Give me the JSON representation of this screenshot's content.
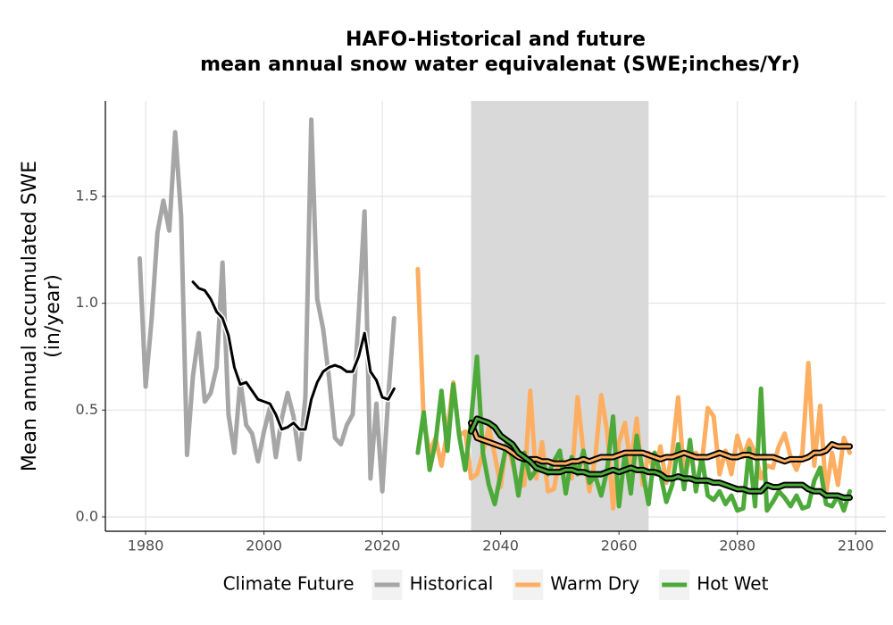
{
  "chart_data": {
    "type": "line",
    "title": [
      "HAFO-Historical and future",
      "mean annual snow water equivalenat (SWE;inches/Yr)"
    ],
    "y_label": [
      "Mean annual accumulated SWE",
      "(in/year)"
    ],
    "legend_title": "Climate Future",
    "legend": "bottom",
    "grid": true,
    "xlim": [
      1973.2,
      2105.1
    ],
    "ylim": [
      -0.067,
      1.947
    ],
    "xticks": [
      1980,
      2000,
      2020,
      2040,
      2060,
      2080,
      2100
    ],
    "yticks": [
      {
        "value": 0,
        "label": "0.0"
      },
      0.5,
      {
        "value": 1,
        "label": "1.0"
      },
      1.5
    ],
    "shaded_region": [
      2035,
      2065
    ],
    "shade_color": "#d9d9d9",
    "series": [
      {
        "name": "Historical",
        "color": "#a6a6a6",
        "x": [
          1979,
          1980,
          1981,
          1982,
          1983,
          1984,
          1985,
          1986,
          1987,
          1988,
          1989,
          1990,
          1991,
          1992,
          1993,
          1994,
          1995,
          1996,
          1997,
          1998,
          1999,
          2000,
          2001,
          2002,
          2003,
          2004,
          2005,
          2006,
          2007,
          2008,
          2009,
          2010,
          2011,
          2012,
          2013,
          2014,
          2015,
          2016,
          2017,
          2018,
          2019,
          2020,
          2021,
          2022
        ],
        "values": [
          1.21,
          0.61,
          0.92,
          1.33,
          1.48,
          1.34,
          1.8,
          1.41,
          0.29,
          0.66,
          0.86,
          0.54,
          0.58,
          0.7,
          1.19,
          0.48,
          0.3,
          0.64,
          0.43,
          0.39,
          0.26,
          0.4,
          0.51,
          0.28,
          0.46,
          0.58,
          0.47,
          0.27,
          0.56,
          1.86,
          1.02,
          0.88,
          0.65,
          0.37,
          0.34,
          0.43,
          0.48,
          0.94,
          1.43,
          0.18,
          0.53,
          0.12,
          0.56,
          0.93
        ],
        "rolling": {
          "color": "#000000",
          "halo": "#ffffff",
          "x": [
            1988,
            1989,
            1990,
            1991,
            1992,
            1993,
            1994,
            1995,
            1996,
            1997,
            1998,
            1999,
            2000,
            2001,
            2002,
            2003,
            2004,
            2005,
            2006,
            2007,
            2008,
            2009,
            2010,
            2011,
            2012,
            2013,
            2014,
            2015,
            2016,
            2017,
            2018,
            2019,
            2020,
            2021,
            2022
          ],
          "values": [
            1.1,
            1.07,
            1.06,
            1.02,
            0.96,
            0.93,
            0.85,
            0.7,
            0.62,
            0.63,
            0.59,
            0.55,
            0.54,
            0.53,
            0.48,
            0.41,
            0.42,
            0.44,
            0.41,
            0.41,
            0.55,
            0.63,
            0.68,
            0.7,
            0.71,
            0.7,
            0.68,
            0.68,
            0.75,
            0.86,
            0.68,
            0.64,
            0.56,
            0.55,
            0.6
          ]
        }
      },
      {
        "name": "Warm Dry",
        "color": "#fdae61",
        "x": [
          2026,
          2027,
          2028,
          2029,
          2030,
          2031,
          2032,
          2033,
          2034,
          2035,
          2036,
          2037,
          2038,
          2039,
          2040,
          2041,
          2042,
          2043,
          2044,
          2045,
          2046,
          2047,
          2048,
          2049,
          2050,
          2051,
          2052,
          2053,
          2054,
          2055,
          2056,
          2057,
          2058,
          2059,
          2060,
          2061,
          2062,
          2063,
          2064,
          2065,
          2066,
          2067,
          2068,
          2069,
          2070,
          2071,
          2072,
          2073,
          2074,
          2075,
          2076,
          2077,
          2078,
          2079,
          2080,
          2081,
          2082,
          2083,
          2084,
          2085,
          2086,
          2087,
          2088,
          2089,
          2090,
          2091,
          2092,
          2093,
          2094,
          2095,
          2096,
          2097,
          2098,
          2099
        ],
        "values": [
          1.16,
          0.45,
          0.3,
          0.37,
          0.24,
          0.4,
          0.63,
          0.38,
          0.4,
          0.18,
          0.2,
          0.3,
          0.42,
          0.29,
          0.14,
          0.35,
          0.25,
          0.14,
          0.15,
          0.59,
          0.18,
          0.35,
          0.12,
          0.13,
          0.28,
          0.24,
          0.18,
          0.56,
          0.3,
          0.12,
          0.28,
          0.57,
          0.4,
          0.04,
          0.35,
          0.44,
          0.24,
          0.46,
          0.15,
          0.3,
          0.2,
          0.33,
          0.16,
          0.3,
          0.56,
          0.19,
          0.28,
          0.3,
          0.25,
          0.51,
          0.47,
          0.2,
          0.31,
          0.2,
          0.38,
          0.28,
          0.36,
          0.3,
          0.18,
          0.24,
          0.23,
          0.33,
          0.39,
          0.28,
          0.22,
          0.3,
          0.72,
          0.24,
          0.52,
          0.11,
          0.3,
          0.15,
          0.37,
          0.3
        ],
        "rolling": {
          "color": "#000000",
          "halo": "#fdae61",
          "x": [
            2035,
            2036,
            2037,
            2038,
            2039,
            2040,
            2041,
            2042,
            2043,
            2044,
            2045,
            2046,
            2047,
            2048,
            2049,
            2050,
            2051,
            2052,
            2053,
            2054,
            2055,
            2056,
            2057,
            2058,
            2059,
            2060,
            2061,
            2062,
            2063,
            2064,
            2065,
            2066,
            2067,
            2068,
            2069,
            2070,
            2071,
            2072,
            2073,
            2074,
            2075,
            2076,
            2077,
            2078,
            2079,
            2080,
            2081,
            2082,
            2083,
            2084,
            2085,
            2086,
            2087,
            2088,
            2089,
            2090,
            2091,
            2092,
            2093,
            2094,
            2095,
            2096,
            2097,
            2098,
            2099
          ],
          "values": [
            0.44,
            0.37,
            0.36,
            0.35,
            0.34,
            0.33,
            0.32,
            0.3,
            0.28,
            0.27,
            0.27,
            0.27,
            0.26,
            0.26,
            0.25,
            0.25,
            0.25,
            0.26,
            0.26,
            0.27,
            0.26,
            0.27,
            0.28,
            0.28,
            0.28,
            0.29,
            0.3,
            0.3,
            0.3,
            0.3,
            0.29,
            0.28,
            0.27,
            0.28,
            0.28,
            0.29,
            0.3,
            0.29,
            0.28,
            0.28,
            0.28,
            0.29,
            0.3,
            0.29,
            0.28,
            0.28,
            0.29,
            0.29,
            0.28,
            0.28,
            0.28,
            0.28,
            0.27,
            0.26,
            0.27,
            0.27,
            0.27,
            0.28,
            0.3,
            0.3,
            0.31,
            0.34,
            0.33,
            0.33,
            0.33
          ]
        }
      },
      {
        "name": "Hot Wet",
        "color": "#4daa3a",
        "x": [
          2026,
          2027,
          2028,
          2029,
          2030,
          2031,
          2032,
          2033,
          2034,
          2035,
          2036,
          2037,
          2038,
          2039,
          2040,
          2041,
          2042,
          2043,
          2044,
          2045,
          2046,
          2047,
          2048,
          2049,
          2050,
          2051,
          2052,
          2053,
          2054,
          2055,
          2056,
          2057,
          2058,
          2059,
          2060,
          2061,
          2062,
          2063,
          2064,
          2065,
          2066,
          2067,
          2068,
          2069,
          2070,
          2071,
          2072,
          2073,
          2074,
          2075,
          2076,
          2077,
          2078,
          2079,
          2080,
          2081,
          2082,
          2083,
          2084,
          2085,
          2086,
          2087,
          2088,
          2089,
          2090,
          2091,
          2092,
          2093,
          2094,
          2095,
          2096,
          2097,
          2098,
          2099
        ],
        "values": [
          0.3,
          0.49,
          0.22,
          0.35,
          0.59,
          0.31,
          0.62,
          0.38,
          0.22,
          0.45,
          0.75,
          0.3,
          0.15,
          0.06,
          0.2,
          0.34,
          0.28,
          0.1,
          0.3,
          0.18,
          0.22,
          0.26,
          0.2,
          0.26,
          0.31,
          0.11,
          0.28,
          0.2,
          0.31,
          0.16,
          0.19,
          0.1,
          0.22,
          0.47,
          0.05,
          0.3,
          0.11,
          0.38,
          0.21,
          0.06,
          0.3,
          0.2,
          0.07,
          0.15,
          0.34,
          0.13,
          0.36,
          0.12,
          0.28,
          0.1,
          0.08,
          0.12,
          0.06,
          0.1,
          0.03,
          0.04,
          0.32,
          0.05,
          0.6,
          0.03,
          0.07,
          0.12,
          0.09,
          0.05,
          0.1,
          0.04,
          0.05,
          0.17,
          0.23,
          0.06,
          0.05,
          0.1,
          0.03,
          0.12
        ],
        "rolling": {
          "color": "#000000",
          "halo": "#4daa3a",
          "x": [
            2035,
            2036,
            2037,
            2038,
            2039,
            2040,
            2041,
            2042,
            2043,
            2044,
            2045,
            2046,
            2047,
            2048,
            2049,
            2050,
            2051,
            2052,
            2053,
            2054,
            2055,
            2056,
            2057,
            2058,
            2059,
            2060,
            2061,
            2062,
            2063,
            2064,
            2065,
            2066,
            2067,
            2068,
            2069,
            2070,
            2071,
            2072,
            2073,
            2074,
            2075,
            2076,
            2077,
            2078,
            2079,
            2080,
            2081,
            2082,
            2083,
            2084,
            2085,
            2086,
            2087,
            2088,
            2089,
            2090,
            2091,
            2092,
            2093,
            2094,
            2095,
            2096,
            2097,
            2098,
            2099
          ],
          "values": [
            0.4,
            0.46,
            0.45,
            0.44,
            0.42,
            0.38,
            0.36,
            0.34,
            0.3,
            0.28,
            0.26,
            0.23,
            0.22,
            0.21,
            0.21,
            0.21,
            0.22,
            0.22,
            0.21,
            0.21,
            0.2,
            0.2,
            0.2,
            0.21,
            0.22,
            0.21,
            0.22,
            0.23,
            0.22,
            0.22,
            0.21,
            0.21,
            0.2,
            0.18,
            0.18,
            0.19,
            0.18,
            0.18,
            0.17,
            0.17,
            0.17,
            0.16,
            0.16,
            0.15,
            0.14,
            0.13,
            0.13,
            0.12,
            0.12,
            0.12,
            0.15,
            0.14,
            0.14,
            0.15,
            0.15,
            0.15,
            0.15,
            0.13,
            0.12,
            0.12,
            0.1,
            0.1,
            0.1,
            0.09,
            0.09
          ]
        }
      }
    ]
  }
}
